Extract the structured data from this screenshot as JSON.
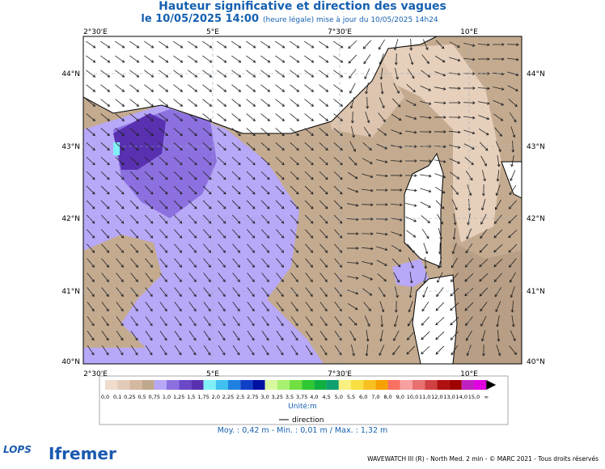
{
  "header": {
    "title": "Hauteur significative et direction des vagues",
    "date": "le 10/05/2025 14:00",
    "update": "(heure légale) mise à jour du 10/05/2025 14h24"
  },
  "map": {
    "lon_labels": [
      "2°30'E",
      "5°E",
      "7°30'E",
      "10°E"
    ],
    "lat_labels": [
      "44°N",
      "43°N",
      "42°N",
      "41°N",
      "40°N"
    ]
  },
  "legend": {
    "labels": [
      "0,0",
      "0,1",
      "0,25",
      "0,5",
      "0,75",
      "1,0",
      "1,25",
      "1,5",
      "1,75",
      "2,0",
      "2,25",
      "2,5",
      "2,75",
      "3,0",
      "3,25",
      "3,5",
      "3,75",
      "4,0",
      "4,5",
      "5,0",
      "5,5",
      "6,0",
      "7,0",
      "8,0",
      "9,0",
      "10,0",
      "11,0",
      "12,0",
      "13,0",
      "14,0",
      "15,0",
      "∞"
    ],
    "colors": [
      "#f0dccc",
      "#e4cbb8",
      "#d4b8a0",
      "#c0a88c",
      "#b8a8f8",
      "#8c70e0",
      "#6a48c8",
      "#5830b0",
      "#80f0f8",
      "#40c0f0",
      "#2080e0",
      "#1040c8",
      "#0010a0",
      "#d8f8a0",
      "#a8f070",
      "#70e040",
      "#30c830",
      "#10b040",
      "#10a070",
      "#f8f080",
      "#f8e040",
      "#f8c020",
      "#f8a000",
      "#f87060",
      "#f8a0a0",
      "#e87070",
      "#d04040",
      "#b01010",
      "#a00000",
      "#c020c0",
      "#e000e0"
    ],
    "unit": "Unité:m",
    "direction": "direction",
    "stats": "Moy. : 0,42 m   -   Min. : 0,01 m / Max. : 1,32 m"
  },
  "footer": {
    "model": "WAVEWATCH III (R) - North Med. 2 min - © MARC 2021 - Tous droits réservés",
    "logo1": "LOPS",
    "logo2": "Ifremer"
  }
}
